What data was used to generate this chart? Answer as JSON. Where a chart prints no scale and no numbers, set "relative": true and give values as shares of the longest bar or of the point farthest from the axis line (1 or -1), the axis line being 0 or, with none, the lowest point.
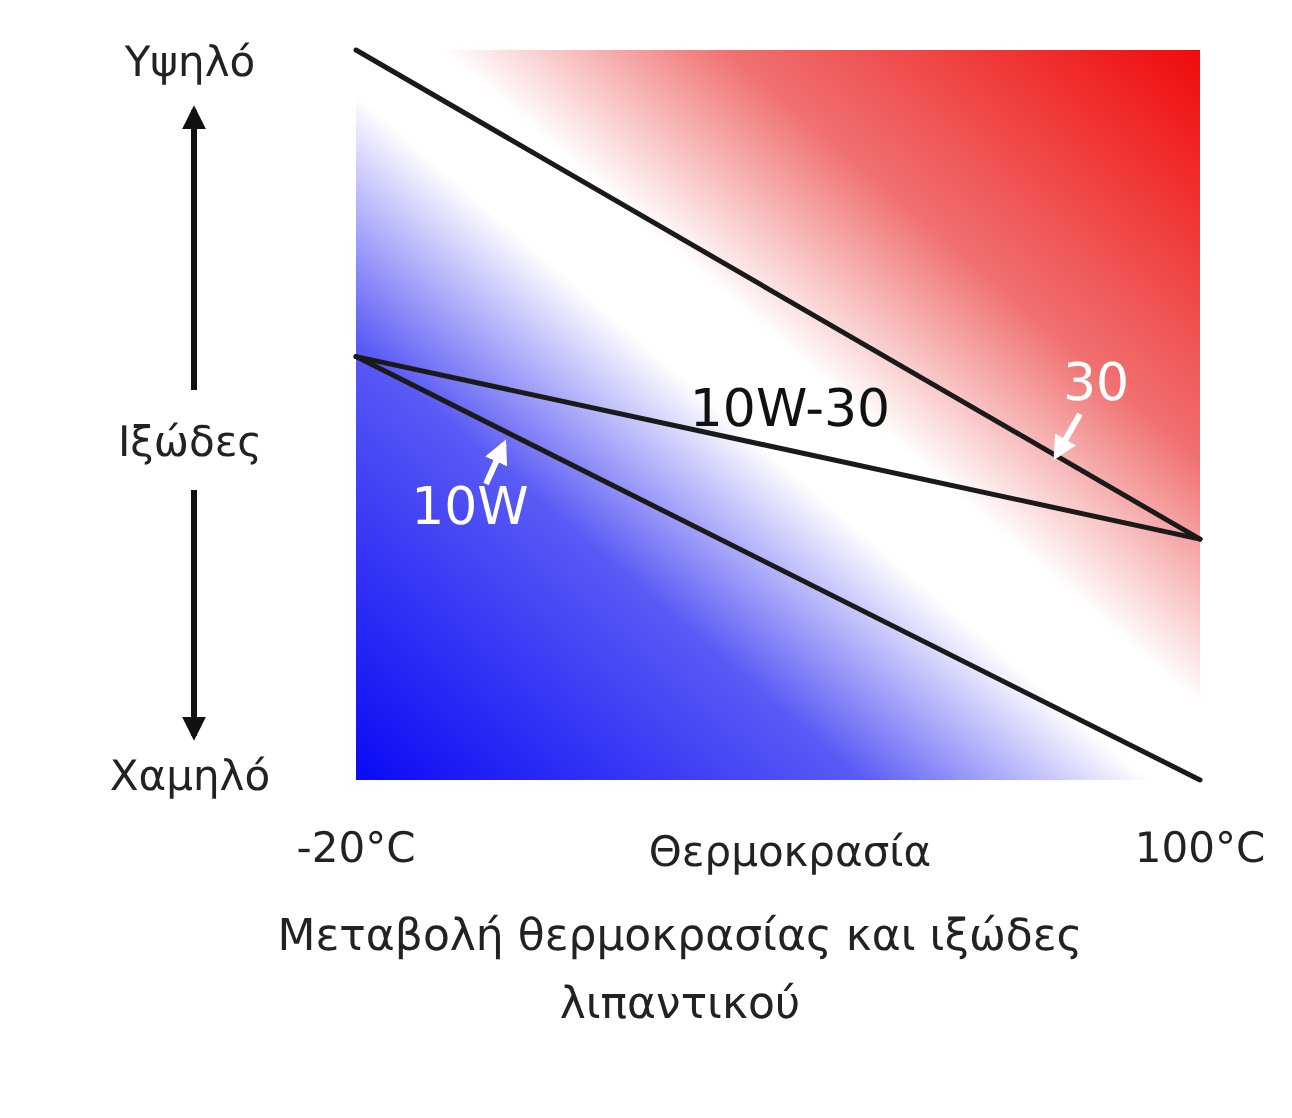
{
  "chart_data": {
    "type": "line",
    "relative": true,
    "x": [
      -20,
      100
    ],
    "xlim": [
      -20,
      100
    ],
    "xticks": [
      {
        "value": -20,
        "label": "-20°C"
      },
      {
        "value": 100,
        "label": "100°C"
      }
    ],
    "xlabel": "Θερμοκρασία",
    "ylabel": "Ιξώδες",
    "grid": false,
    "marker": "none",
    "line_style": "solid",
    "series": [
      {
        "name": "30",
        "color": "#1a1a1a",
        "values": [
          1,
          0.33
        ]
      },
      {
        "name": "10W",
        "color": "#1a1a1a",
        "values": [
          0.58,
          0
        ]
      },
      {
        "name": "10W-30",
        "color": "#1a1a1a",
        "values": [
          0.58,
          0.33
        ]
      }
    ],
    "annotations": [
      "Υψηλό",
      "Χαμηλό",
      "Μεταβολή θερμοκρασίας και ιξώδες λιπαντικού"
    ]
  }
}
